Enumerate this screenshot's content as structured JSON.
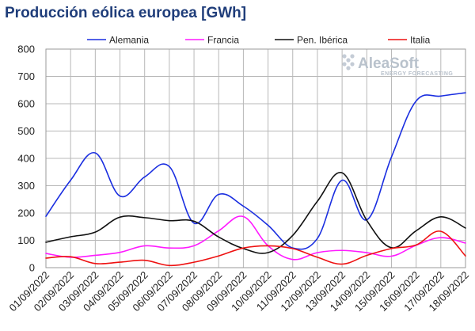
{
  "chart_data": {
    "type": "line",
    "title": "Producción eólica europea [GWh]",
    "xlabel": "",
    "ylabel": "",
    "ylim": [
      0,
      800
    ],
    "yticks": [
      0,
      100,
      200,
      300,
      400,
      500,
      600,
      700,
      800
    ],
    "grid": true,
    "legend_position": "top",
    "x": [
      "01/09/2022",
      "02/09/2022",
      "03/09/2022",
      "04/09/2022",
      "05/09/2022",
      "06/09/2022",
      "07/09/2022",
      "08/09/2022",
      "09/09/2022",
      "10/09/2022",
      "11/09/2022",
      "12/09/2022",
      "13/09/2022",
      "14/09/2022",
      "15/09/2022",
      "16/09/2022",
      "17/09/2022",
      "18/09/2022"
    ],
    "series": [
      {
        "name": "Alemania",
        "color": "#1a2ee0",
        "values": [
          188,
          320,
          420,
          262,
          332,
          370,
          163,
          268,
          225,
          155,
          72,
          107,
          320,
          175,
          405,
          610,
          628,
          640
        ]
      },
      {
        "name": "Francia",
        "color": "#ff1aff",
        "values": [
          52,
          38,
          45,
          56,
          80,
          72,
          80,
          135,
          187,
          80,
          30,
          55,
          63,
          55,
          42,
          82,
          110,
          90
        ]
      },
      {
        "name": "Pen. Ibérica",
        "color": "#111111",
        "values": [
          93,
          113,
          130,
          185,
          183,
          172,
          170,
          112,
          70,
          55,
          118,
          243,
          347,
          173,
          73,
          135,
          186,
          145
        ]
      },
      {
        "name": "Italia",
        "color": "#ee1111",
        "values": [
          35,
          40,
          15,
          20,
          27,
          8,
          20,
          43,
          72,
          80,
          70,
          38,
          13,
          45,
          70,
          83,
          133,
          43
        ]
      }
    ]
  },
  "logo": {
    "name": "AleaSoft",
    "tagline": "ENERGY FORECASTING"
  }
}
